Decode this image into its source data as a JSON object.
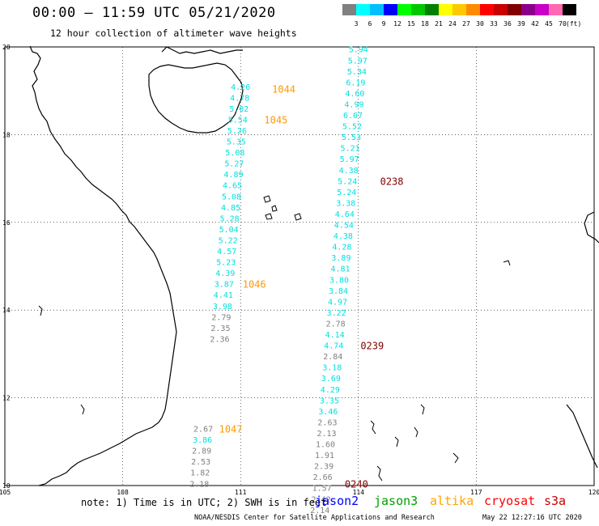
{
  "header": {
    "title": "00:00 — 11:59 UTC 05/21/2020",
    "subtitle": "12 hour collection of altimeter wave heights"
  },
  "colorbar": {
    "unit": "(ft)",
    "colors": [
      "#808080",
      "#00ffff",
      "#00bfff",
      "#0000ff",
      "#00ff00",
      "#00c800",
      "#008000",
      "#ffff00",
      "#ffc800",
      "#ff8c00",
      "#ff0000",
      "#c80000",
      "#800000",
      "#8b008b",
      "#c800c8",
      "#ff69b4",
      "#000000"
    ],
    "ticks": [
      "3",
      "6",
      "9",
      "12",
      "15",
      "18",
      "21",
      "24",
      "27",
      "30",
      "33",
      "36",
      "39",
      "42",
      "45",
      "70"
    ]
  },
  "chart_data": {
    "type": "scatter",
    "title": "00:00 — 11:59 UTC 05/21/2020",
    "subtitle": "12 hour collection of altimeter wave heights",
    "xlim": [
      105,
      120
    ],
    "ylim": [
      10,
      20
    ],
    "x_ticks": [
      "105",
      "108",
      "111",
      "114",
      "117",
      "120"
    ],
    "y_ticks": [
      "20",
      "18",
      "16",
      "14",
      "12",
      "10"
    ],
    "grid": true,
    "series": [
      {
        "name": "jason3",
        "track": "west",
        "points": [
          {
            "lon": 111.0,
            "lat": 19.1,
            "value": "4.26"
          },
          {
            "lon": 110.98,
            "lat": 18.85,
            "value": "4.78"
          },
          {
            "lon": 110.96,
            "lat": 18.6,
            "value": "5.02"
          },
          {
            "lon": 110.93,
            "lat": 18.35,
            "value": "5.54"
          },
          {
            "lon": 110.91,
            "lat": 18.1,
            "value": "5.26"
          },
          {
            "lon": 110.89,
            "lat": 17.85,
            "value": "5.35"
          },
          {
            "lon": 110.86,
            "lat": 17.6,
            "value": "5.08"
          },
          {
            "lon": 110.84,
            "lat": 17.35,
            "value": "5.27"
          },
          {
            "lon": 110.82,
            "lat": 17.1,
            "value": "4.89"
          },
          {
            "lon": 110.79,
            "lat": 16.85,
            "value": "4.65"
          },
          {
            "lon": 110.77,
            "lat": 16.6,
            "value": "5.08"
          },
          {
            "lon": 110.75,
            "lat": 16.35,
            "value": "4.85"
          },
          {
            "lon": 110.72,
            "lat": 16.1,
            "value": "5.28"
          },
          {
            "lon": 110.7,
            "lat": 15.85,
            "value": "5.04"
          },
          {
            "lon": 110.68,
            "lat": 15.6,
            "value": "5.22"
          },
          {
            "lon": 110.65,
            "lat": 15.35,
            "value": "4.57"
          },
          {
            "lon": 110.63,
            "lat": 15.1,
            "value": "5.23"
          },
          {
            "lon": 110.61,
            "lat": 14.85,
            "value": "4.39"
          },
          {
            "lon": 110.58,
            "lat": 14.6,
            "value": "3.87"
          },
          {
            "lon": 110.56,
            "lat": 14.35,
            "value": "4.41"
          },
          {
            "lon": 110.54,
            "lat": 14.1,
            "value": "3.98"
          },
          {
            "lon": 110.51,
            "lat": 13.85,
            "value": "2.79"
          },
          {
            "lon": 110.49,
            "lat": 13.6,
            "value": "2.35"
          },
          {
            "lon": 110.47,
            "lat": 13.35,
            "value": "2.36"
          },
          {
            "lon": 110.05,
            "lat": 11.3,
            "value": "2.67"
          },
          {
            "lon": 110.03,
            "lat": 11.05,
            "value": "3.86"
          },
          {
            "lon": 110.01,
            "lat": 10.8,
            "value": "2.89"
          },
          {
            "lon": 109.99,
            "lat": 10.55,
            "value": "2.53"
          },
          {
            "lon": 109.97,
            "lat": 10.3,
            "value": "1.82"
          },
          {
            "lon": 109.95,
            "lat": 10.05,
            "value": "2.18"
          }
        ]
      },
      {
        "name": "jason3",
        "track": "east",
        "points": [
          {
            "lon": 114.0,
            "lat": 19.95,
            "value": "5.94"
          },
          {
            "lon": 113.98,
            "lat": 19.7,
            "value": "5.97"
          },
          {
            "lon": 113.96,
            "lat": 19.45,
            "value": "5.34"
          },
          {
            "lon": 113.93,
            "lat": 19.2,
            "value": "6.19"
          },
          {
            "lon": 113.91,
            "lat": 18.95,
            "value": "4.60"
          },
          {
            "lon": 113.89,
            "lat": 18.7,
            "value": "4.99"
          },
          {
            "lon": 113.86,
            "lat": 18.45,
            "value": "6.07"
          },
          {
            "lon": 113.84,
            "lat": 18.2,
            "value": "5.52"
          },
          {
            "lon": 113.82,
            "lat": 17.95,
            "value": "5.53"
          },
          {
            "lon": 113.79,
            "lat": 17.7,
            "value": "5.21"
          },
          {
            "lon": 113.77,
            "lat": 17.45,
            "value": "5.97"
          },
          {
            "lon": 113.75,
            "lat": 17.2,
            "value": "4.38"
          },
          {
            "lon": 113.72,
            "lat": 16.95,
            "value": "5.24"
          },
          {
            "lon": 113.7,
            "lat": 16.7,
            "value": "5.24"
          },
          {
            "lon": 113.68,
            "lat": 16.45,
            "value": "3.38"
          },
          {
            "lon": 113.65,
            "lat": 16.2,
            "value": "4.64"
          },
          {
            "lon": 113.63,
            "lat": 15.95,
            "value": "4.54"
          },
          {
            "lon": 113.61,
            "lat": 15.7,
            "value": "4.38"
          },
          {
            "lon": 113.58,
            "lat": 15.45,
            "value": "4.28"
          },
          {
            "lon": 113.56,
            "lat": 15.2,
            "value": "3.89"
          },
          {
            "lon": 113.54,
            "lat": 14.95,
            "value": "4.81"
          },
          {
            "lon": 113.51,
            "lat": 14.7,
            "value": "3.80"
          },
          {
            "lon": 113.49,
            "lat": 14.45,
            "value": "3.84"
          },
          {
            "lon": 113.47,
            "lat": 14.2,
            "value": "4.97"
          },
          {
            "lon": 113.44,
            "lat": 13.95,
            "value": "3.22"
          },
          {
            "lon": 113.42,
            "lat": 13.7,
            "value": "2.78"
          },
          {
            "lon": 113.4,
            "lat": 13.45,
            "value": "4.14"
          },
          {
            "lon": 113.37,
            "lat": 13.2,
            "value": "4.74"
          },
          {
            "lon": 113.35,
            "lat": 12.95,
            "value": "2.84"
          },
          {
            "lon": 113.33,
            "lat": 12.7,
            "value": "3.18"
          },
          {
            "lon": 113.3,
            "lat": 12.45,
            "value": "3.69"
          },
          {
            "lon": 113.28,
            "lat": 12.2,
            "value": "4.29"
          },
          {
            "lon": 113.26,
            "lat": 11.95,
            "value": "3.35"
          },
          {
            "lon": 113.23,
            "lat": 11.7,
            "value": "3.46"
          },
          {
            "lon": 113.21,
            "lat": 11.45,
            "value": "2.63"
          },
          {
            "lon": 113.19,
            "lat": 11.2,
            "value": "2.13"
          },
          {
            "lon": 113.16,
            "lat": 10.95,
            "value": "1.60"
          },
          {
            "lon": 113.14,
            "lat": 10.7,
            "value": "1.91"
          },
          {
            "lon": 113.12,
            "lat": 10.45,
            "value": "2.39"
          },
          {
            "lon": 113.09,
            "lat": 10.2,
            "value": "2.66"
          },
          {
            "lon": 113.07,
            "lat": 9.95,
            "value": "1.57"
          },
          {
            "lon": 113.05,
            "lat": 9.7,
            "value": "2.42"
          },
          {
            "lon": 113.02,
            "lat": 9.45,
            "value": "2.14"
          }
        ]
      }
    ],
    "time_labels": [
      {
        "label": "1044",
        "lon": 112.1,
        "lat": 19.05,
        "satellite": "altika"
      },
      {
        "label": "1045",
        "lon": 111.9,
        "lat": 18.35,
        "satellite": "altika"
      },
      {
        "label": "1046",
        "lon": 111.35,
        "lat": 14.6,
        "satellite": "altika"
      },
      {
        "label": "1047",
        "lon": 110.75,
        "lat": 11.3,
        "satellite": "altika"
      },
      {
        "label": "0238",
        "lon": 114.85,
        "lat": 16.95,
        "satellite": "cryosat"
      },
      {
        "label": "0239",
        "lon": 114.35,
        "lat": 13.2,
        "satellite": "cryosat"
      },
      {
        "label": "0240",
        "lon": 113.95,
        "lat": 10.05,
        "satellite": "cryosat"
      }
    ]
  },
  "footer": {
    "note": "note: 1) Time is in UTC; 2) SWH is in feet",
    "credit": "NOAA/NESDIS Center for Satellite Applications and Research",
    "timestamp": "May 22 12:27:16 UTC 2020",
    "legend": [
      {
        "label": "jason2",
        "color": "#0000ff"
      },
      {
        "label": "jason3",
        "color": "#00a000"
      },
      {
        "label": "altika",
        "color": "#ffa500"
      },
      {
        "label": "cryosat",
        "color": "#ff0000"
      },
      {
        "label": "s3a",
        "color": "#cc0000"
      }
    ]
  },
  "colors": {
    "swh_low": "#808080",
    "swh_3_6": "#00e0e0",
    "altika": "#ff9900",
    "cryosat": "#800000",
    "grid": "#000000"
  }
}
